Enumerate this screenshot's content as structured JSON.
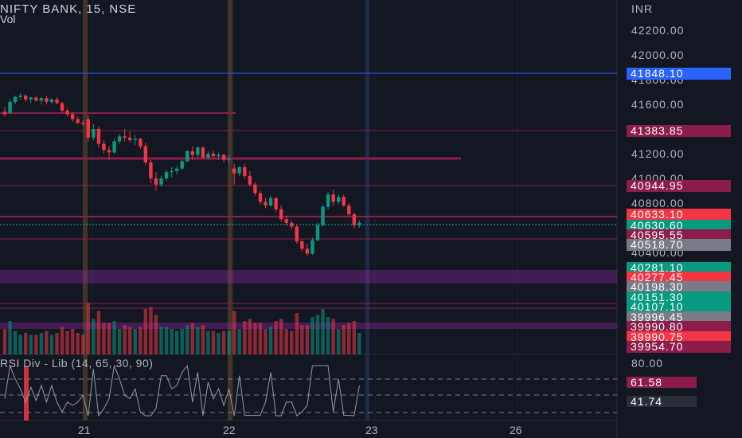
{
  "header": {
    "title": "NIFTY BANK, 15, NSE",
    "volume_label": "Vol",
    "currency": "INR"
  },
  "price_axis": {
    "ticks": [
      {
        "label": "42200.00",
        "value": 42200
      },
      {
        "label": "42000.00",
        "value": 42000
      },
      {
        "label": "41800.00",
        "value": 41800
      },
      {
        "label": "41600.00",
        "value": 41600
      },
      {
        "label": "41200.00",
        "value": 41200
      },
      {
        "label": "41000.00",
        "value": 41000
      },
      {
        "label": "40800.00",
        "value": 40800
      },
      {
        "label": "40400.00",
        "value": 40400
      }
    ]
  },
  "level_tags": [
    {
      "label": "41848.10",
      "value": 41848.1,
      "color": "#2962ff"
    },
    {
      "label": "41383.85",
      "value": 41383.85,
      "color": "#8c1c4a"
    },
    {
      "label": "40944.95",
      "value": 40944.95,
      "color": "#8c1c4a"
    },
    {
      "label": "40633.10",
      "value": 40633.1,
      "color": "#f23645"
    },
    {
      "label": "40630.60",
      "value": 40630.6,
      "color": "#089981"
    },
    {
      "label": "40595.55",
      "value": 40595.55,
      "color": "#8c1c4a"
    },
    {
      "label": "40518.70",
      "value": 40518.7,
      "color": "#787b86"
    },
    {
      "label": "40281.10",
      "value": 40281.1,
      "color": "#089981"
    },
    {
      "label": "40277.45",
      "value": 40277.45,
      "color": "#f23645"
    },
    {
      "label": "40198.30",
      "value": 40198.3,
      "color": "#787b86"
    },
    {
      "label": "40151.30",
      "value": 40151.3,
      "color": "#089981"
    },
    {
      "label": "40107.10",
      "value": 40107.1,
      "color": "#089981"
    },
    {
      "label": "39996.45",
      "value": 39996.45,
      "color": "#787b86"
    },
    {
      "label": "39990.80",
      "value": 39990.8,
      "color": "#8c1c4a"
    },
    {
      "label": "39990.75",
      "value": 39990.75,
      "color": "#f23645"
    },
    {
      "label": "39954.70",
      "value": 39954.7,
      "color": "#8c1c4a"
    }
  ],
  "rsi": {
    "title": "RSI Div - Lib (14, 65, 30, 90)",
    "axis_label": "80.00",
    "tags": [
      {
        "label": "61.58",
        "value": 61.58,
        "color": "#8c1c4a"
      },
      {
        "label": "41.74",
        "value": 41.74,
        "color": "#2a2e39"
      }
    ]
  },
  "time_axis": {
    "labels": [
      {
        "label": "21",
        "date": "21"
      },
      {
        "label": "22",
        "date": "22"
      },
      {
        "label": "23",
        "date": "23"
      },
      {
        "label": "26",
        "date": "26"
      }
    ]
  },
  "colors": {
    "background": "#131722",
    "up": "#089981",
    "down": "#f23645",
    "zone": "#9c27b0",
    "level_line": "#8c1c4a",
    "blue_line": "#2962ff"
  },
  "chart_data": {
    "type": "candlestick",
    "title": "NIFTY BANK, 15, NSE",
    "ylabel": "INR",
    "ylim": [
      40300,
      42250
    ],
    "sessions": [
      "20",
      "21",
      "22"
    ],
    "candles_ohlc": [
      [
        41540,
        41580,
        41500,
        41520
      ],
      [
        41530,
        41640,
        41520,
        41620
      ],
      [
        41620,
        41670,
        41600,
        41660
      ],
      [
        41660,
        41690,
        41640,
        41670
      ],
      [
        41670,
        41680,
        41620,
        41640
      ],
      [
        41640,
        41660,
        41610,
        41655
      ],
      [
        41655,
        41670,
        41620,
        41630
      ],
      [
        41630,
        41660,
        41600,
        41650
      ],
      [
        41650,
        41670,
        41600,
        41620
      ],
      [
        41620,
        41650,
        41600,
        41640
      ],
      [
        41640,
        41660,
        41600,
        41610
      ],
      [
        41610,
        41620,
        41530,
        41550
      ],
      [
        41550,
        41570,
        41500,
        41520
      ],
      [
        41520,
        41540,
        41460,
        41480
      ],
      [
        41480,
        41500,
        41440,
        41450
      ],
      [
        41450,
        41470,
        41420,
        41440
      ],
      [
        41480,
        41510,
        41300,
        41330
      ],
      [
        41330,
        41440,
        41310,
        41400
      ],
      [
        41400,
        41420,
        41250,
        41280
      ],
      [
        41280,
        41310,
        41200,
        41230
      ],
      [
        41230,
        41260,
        41150,
        41210
      ],
      [
        41210,
        41320,
        41200,
        41300
      ],
      [
        41300,
        41360,
        41280,
        41340
      ],
      [
        41340,
        41400,
        41300,
        41330
      ],
      [
        41330,
        41380,
        41290,
        41310
      ],
      [
        41310,
        41350,
        41270,
        41320
      ],
      [
        41320,
        41330,
        41240,
        41260
      ],
      [
        41260,
        41290,
        41110,
        41130
      ],
      [
        41130,
        41150,
        40960,
        41000
      ],
      [
        41000,
        41050,
        40900,
        40950
      ],
      [
        40950,
        41020,
        40930,
        41000
      ],
      [
        41000,
        41070,
        40980,
        41050
      ],
      [
        41050,
        41090,
        41010,
        41060
      ],
      [
        41060,
        41100,
        41030,
        41080
      ],
      [
        41080,
        41150,
        41070,
        41140
      ],
      [
        41140,
        41230,
        41130,
        41220
      ],
      [
        41220,
        41260,
        41150,
        41190
      ],
      [
        41190,
        41260,
        41170,
        41250
      ],
      [
        41250,
        41260,
        41160,
        41170
      ],
      [
        41170,
        41220,
        41150,
        41200
      ],
      [
        41200,
        41230,
        41160,
        41180
      ],
      [
        41180,
        41210,
        41150,
        41190
      ],
      [
        41190,
        41200,
        41130,
        41150
      ],
      [
        41150,
        41190,
        41120,
        41160
      ],
      [
        41080,
        41120,
        40950,
        41040
      ],
      [
        41040,
        41100,
        41020,
        41090
      ],
      [
        41090,
        41120,
        41000,
        41020
      ],
      [
        41020,
        41060,
        40930,
        40950
      ],
      [
        40950,
        40970,
        40860,
        40880
      ],
      [
        40880,
        40900,
        40790,
        40810
      ],
      [
        40810,
        40840,
        40760,
        40780
      ],
      [
        40780,
        40860,
        40770,
        40840
      ],
      [
        40840,
        40850,
        40730,
        40750
      ],
      [
        40750,
        40780,
        40650,
        40670
      ],
      [
        40670,
        40700,
        40620,
        40640
      ],
      [
        40640,
        40660,
        40590,
        40610
      ],
      [
        40610,
        40630,
        40470,
        40490
      ],
      [
        40490,
        40510,
        40410,
        40430
      ],
      [
        40430,
        40470,
        40370,
        40390
      ],
      [
        40390,
        40520,
        40380,
        40500
      ],
      [
        40500,
        40640,
        40490,
        40620
      ],
      [
        40620,
        40790,
        40610,
        40770
      ],
      [
        40770,
        40890,
        40750,
        40870
      ],
      [
        40870,
        40910,
        40780,
        40810
      ],
      [
        40810,
        40870,
        40790,
        40850
      ],
      [
        40850,
        40870,
        40770,
        40780
      ],
      [
        40780,
        40800,
        40690,
        40710
      ],
      [
        40710,
        40720,
        40600,
        40620
      ],
      [
        40620,
        40660,
        40600,
        40640
      ]
    ],
    "rsi_levels": [
      30,
      65,
      80,
      90
    ],
    "rsi_last": 41.74
  }
}
